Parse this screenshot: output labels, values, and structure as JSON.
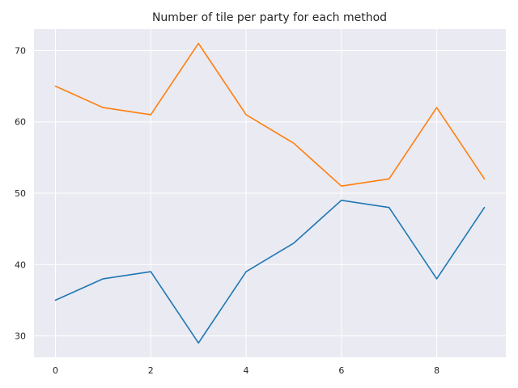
{
  "chart_data": {
    "type": "line",
    "title": "Number of tile per party for each method",
    "xlabel": "",
    "ylabel": "",
    "x": [
      0,
      1,
      2,
      3,
      4,
      5,
      6,
      7,
      8,
      9
    ],
    "x_ticks": [
      0,
      2,
      4,
      6,
      8
    ],
    "y_ticks": [
      30,
      40,
      50,
      60,
      70
    ],
    "xlim": [
      -0.45,
      9.45
    ],
    "ylim": [
      27,
      73
    ],
    "grid": true,
    "background": "#eaeaf2",
    "series": [
      {
        "values": [
          35,
          38,
          39,
          29,
          39,
          43,
          49,
          48,
          38,
          48
        ],
        "color": "#1f77b4"
      },
      {
        "values": [
          65,
          62,
          61,
          71,
          61,
          57,
          51,
          52,
          62,
          52
        ],
        "color": "#ff7f0e"
      }
    ]
  }
}
